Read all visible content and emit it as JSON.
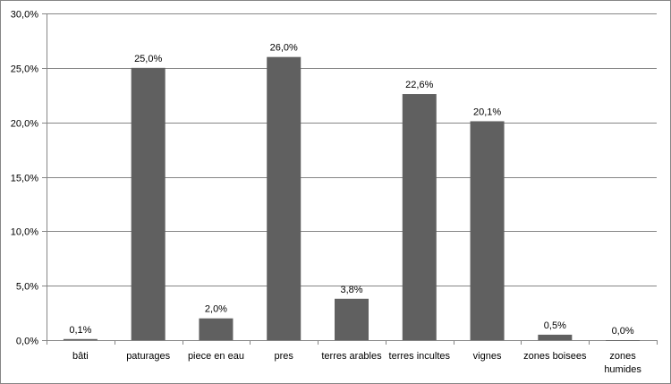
{
  "chart_data": {
    "type": "bar",
    "title": "",
    "xlabel": "",
    "ylabel": "",
    "categories": [
      "bâti",
      "paturages",
      "piece en eau",
      "pres",
      "terres arables",
      "terres incultes",
      "vignes",
      "zones boisees",
      "zones humides"
    ],
    "values": [
      0.1,
      25.0,
      2.0,
      26.0,
      3.8,
      22.6,
      20.1,
      0.5,
      0.0
    ],
    "data_labels": [
      "0,1%",
      "25,0%",
      "2,0%",
      "26,0%",
      "3,8%",
      "22,6%",
      "20,1%",
      "0,5%",
      "0,0%"
    ],
    "ylim": [
      0,
      30
    ],
    "yticks": [
      0,
      5,
      10,
      15,
      20,
      25,
      30
    ],
    "ytick_labels": [
      "0,0%",
      "5,0%",
      "10,0%",
      "15,0%",
      "20,0%",
      "25,0%",
      "30,0%"
    ],
    "grid": true,
    "legend": "none",
    "colors": {
      "bar": "#606060",
      "grid": "#868686",
      "border": "#868686"
    }
  }
}
